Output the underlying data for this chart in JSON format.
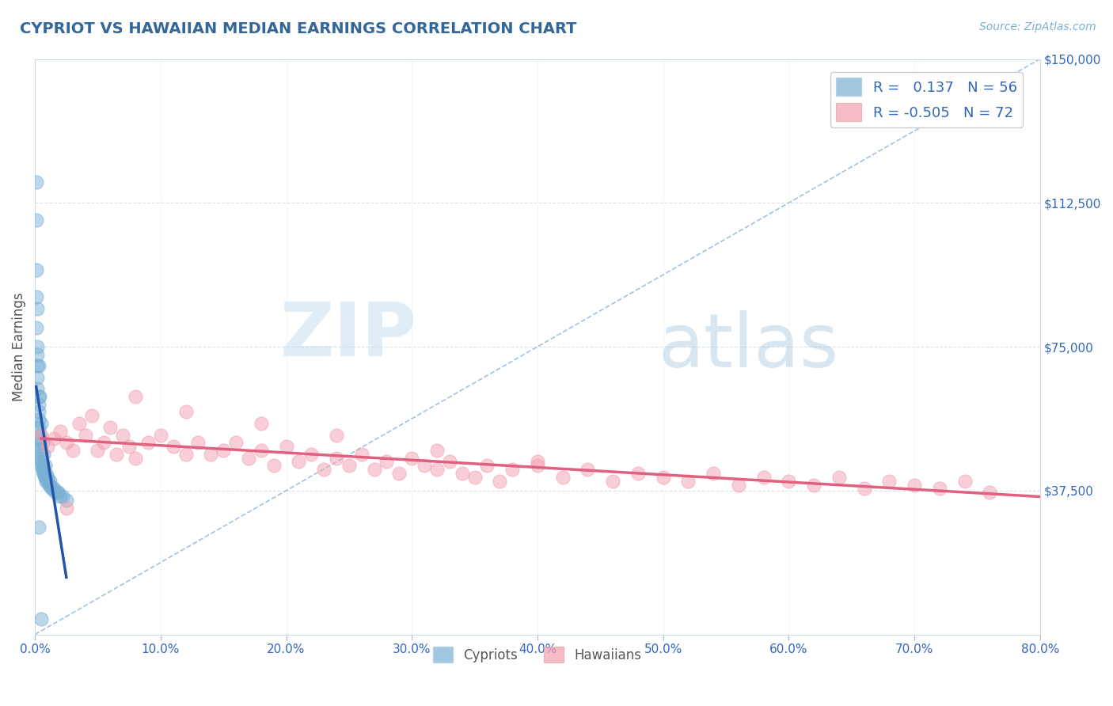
{
  "title": "CYPRIOT VS HAWAIIAN MEDIAN EARNINGS CORRELATION CHART",
  "source": "Source: ZipAtlas.com",
  "ylabel": "Median Earnings",
  "xlim": [
    0.0,
    0.8
  ],
  "ylim": [
    0,
    150000
  ],
  "yticks": [
    0,
    37500,
    75000,
    112500,
    150000
  ],
  "ytick_labels": [
    "",
    "$37,500",
    "$75,000",
    "$112,500",
    "$150,000"
  ],
  "xticks": [
    0.0,
    0.1,
    0.2,
    0.3,
    0.4,
    0.5,
    0.6,
    0.7,
    0.8
  ],
  "xtick_labels": [
    "0.0%",
    "10.0%",
    "20.0%",
    "30.0%",
    "40.0%",
    "50.0%",
    "60.0%",
    "70.0%",
    "80.0%"
  ],
  "blue_R": 0.137,
  "blue_N": 56,
  "pink_R": -0.505,
  "pink_N": 72,
  "blue_color": "#7ab0d4",
  "pink_color": "#f4a0b0",
  "blue_line_color": "#2255aa",
  "pink_line_color": "#e06080",
  "ref_line_color": "#99bbdd",
  "background_color": "#ffffff",
  "title_color": "#336699",
  "source_color": "#7ab0d4",
  "legend_text_color": "#3366bb",
  "watermark_zip": "ZIP",
  "watermark_atlas": "atlas",
  "blue_x": [
    0.001,
    0.001,
    0.001,
    0.001,
    0.001,
    0.002,
    0.002,
    0.002,
    0.002,
    0.002,
    0.003,
    0.003,
    0.003,
    0.003,
    0.003,
    0.004,
    0.004,
    0.004,
    0.004,
    0.004,
    0.005,
    0.005,
    0.005,
    0.005,
    0.006,
    0.006,
    0.006,
    0.007,
    0.007,
    0.008,
    0.008,
    0.009,
    0.01,
    0.011,
    0.012,
    0.013,
    0.014,
    0.016,
    0.018,
    0.02,
    0.002,
    0.003,
    0.004,
    0.005,
    0.006,
    0.007,
    0.008,
    0.009,
    0.01,
    0.012,
    0.015,
    0.018,
    0.022,
    0.025,
    0.003,
    0.005
  ],
  "blue_y": [
    118000,
    108000,
    95000,
    88000,
    80000,
    75000,
    73000,
    70000,
    67000,
    64000,
    62000,
    60000,
    58000,
    56000,
    54000,
    52000,
    51000,
    50000,
    49000,
    48000,
    47000,
    46000,
    45000,
    44000,
    44000,
    43000,
    43000,
    42000,
    42000,
    41000,
    41000,
    40000,
    40000,
    39000,
    39000,
    38000,
    38000,
    37000,
    37000,
    36000,
    85000,
    70000,
    62000,
    55000,
    50000,
    47000,
    44000,
    42000,
    41000,
    40000,
    38000,
    37000,
    36000,
    35000,
    28000,
    4000
  ],
  "pink_x": [
    0.005,
    0.01,
    0.015,
    0.02,
    0.025,
    0.03,
    0.035,
    0.04,
    0.05,
    0.055,
    0.06,
    0.065,
    0.07,
    0.075,
    0.08,
    0.09,
    0.1,
    0.11,
    0.12,
    0.13,
    0.14,
    0.15,
    0.16,
    0.17,
    0.18,
    0.19,
    0.2,
    0.21,
    0.22,
    0.23,
    0.24,
    0.25,
    0.26,
    0.27,
    0.28,
    0.29,
    0.3,
    0.31,
    0.32,
    0.33,
    0.34,
    0.35,
    0.36,
    0.37,
    0.38,
    0.4,
    0.42,
    0.44,
    0.46,
    0.48,
    0.5,
    0.52,
    0.54,
    0.56,
    0.58,
    0.6,
    0.62,
    0.64,
    0.66,
    0.68,
    0.7,
    0.72,
    0.74,
    0.76,
    0.025,
    0.045,
    0.08,
    0.12,
    0.18,
    0.24,
    0.32,
    0.4
  ],
  "pink_y": [
    52000,
    49000,
    51000,
    53000,
    50000,
    48000,
    55000,
    52000,
    48000,
    50000,
    54000,
    47000,
    52000,
    49000,
    46000,
    50000,
    52000,
    49000,
    47000,
    50000,
    47000,
    48000,
    50000,
    46000,
    48000,
    44000,
    49000,
    45000,
    47000,
    43000,
    46000,
    44000,
    47000,
    43000,
    45000,
    42000,
    46000,
    44000,
    43000,
    45000,
    42000,
    41000,
    44000,
    40000,
    43000,
    44000,
    41000,
    43000,
    40000,
    42000,
    41000,
    40000,
    42000,
    39000,
    41000,
    40000,
    39000,
    41000,
    38000,
    40000,
    39000,
    38000,
    40000,
    37000,
    33000,
    57000,
    62000,
    58000,
    55000,
    52000,
    48000,
    45000
  ]
}
